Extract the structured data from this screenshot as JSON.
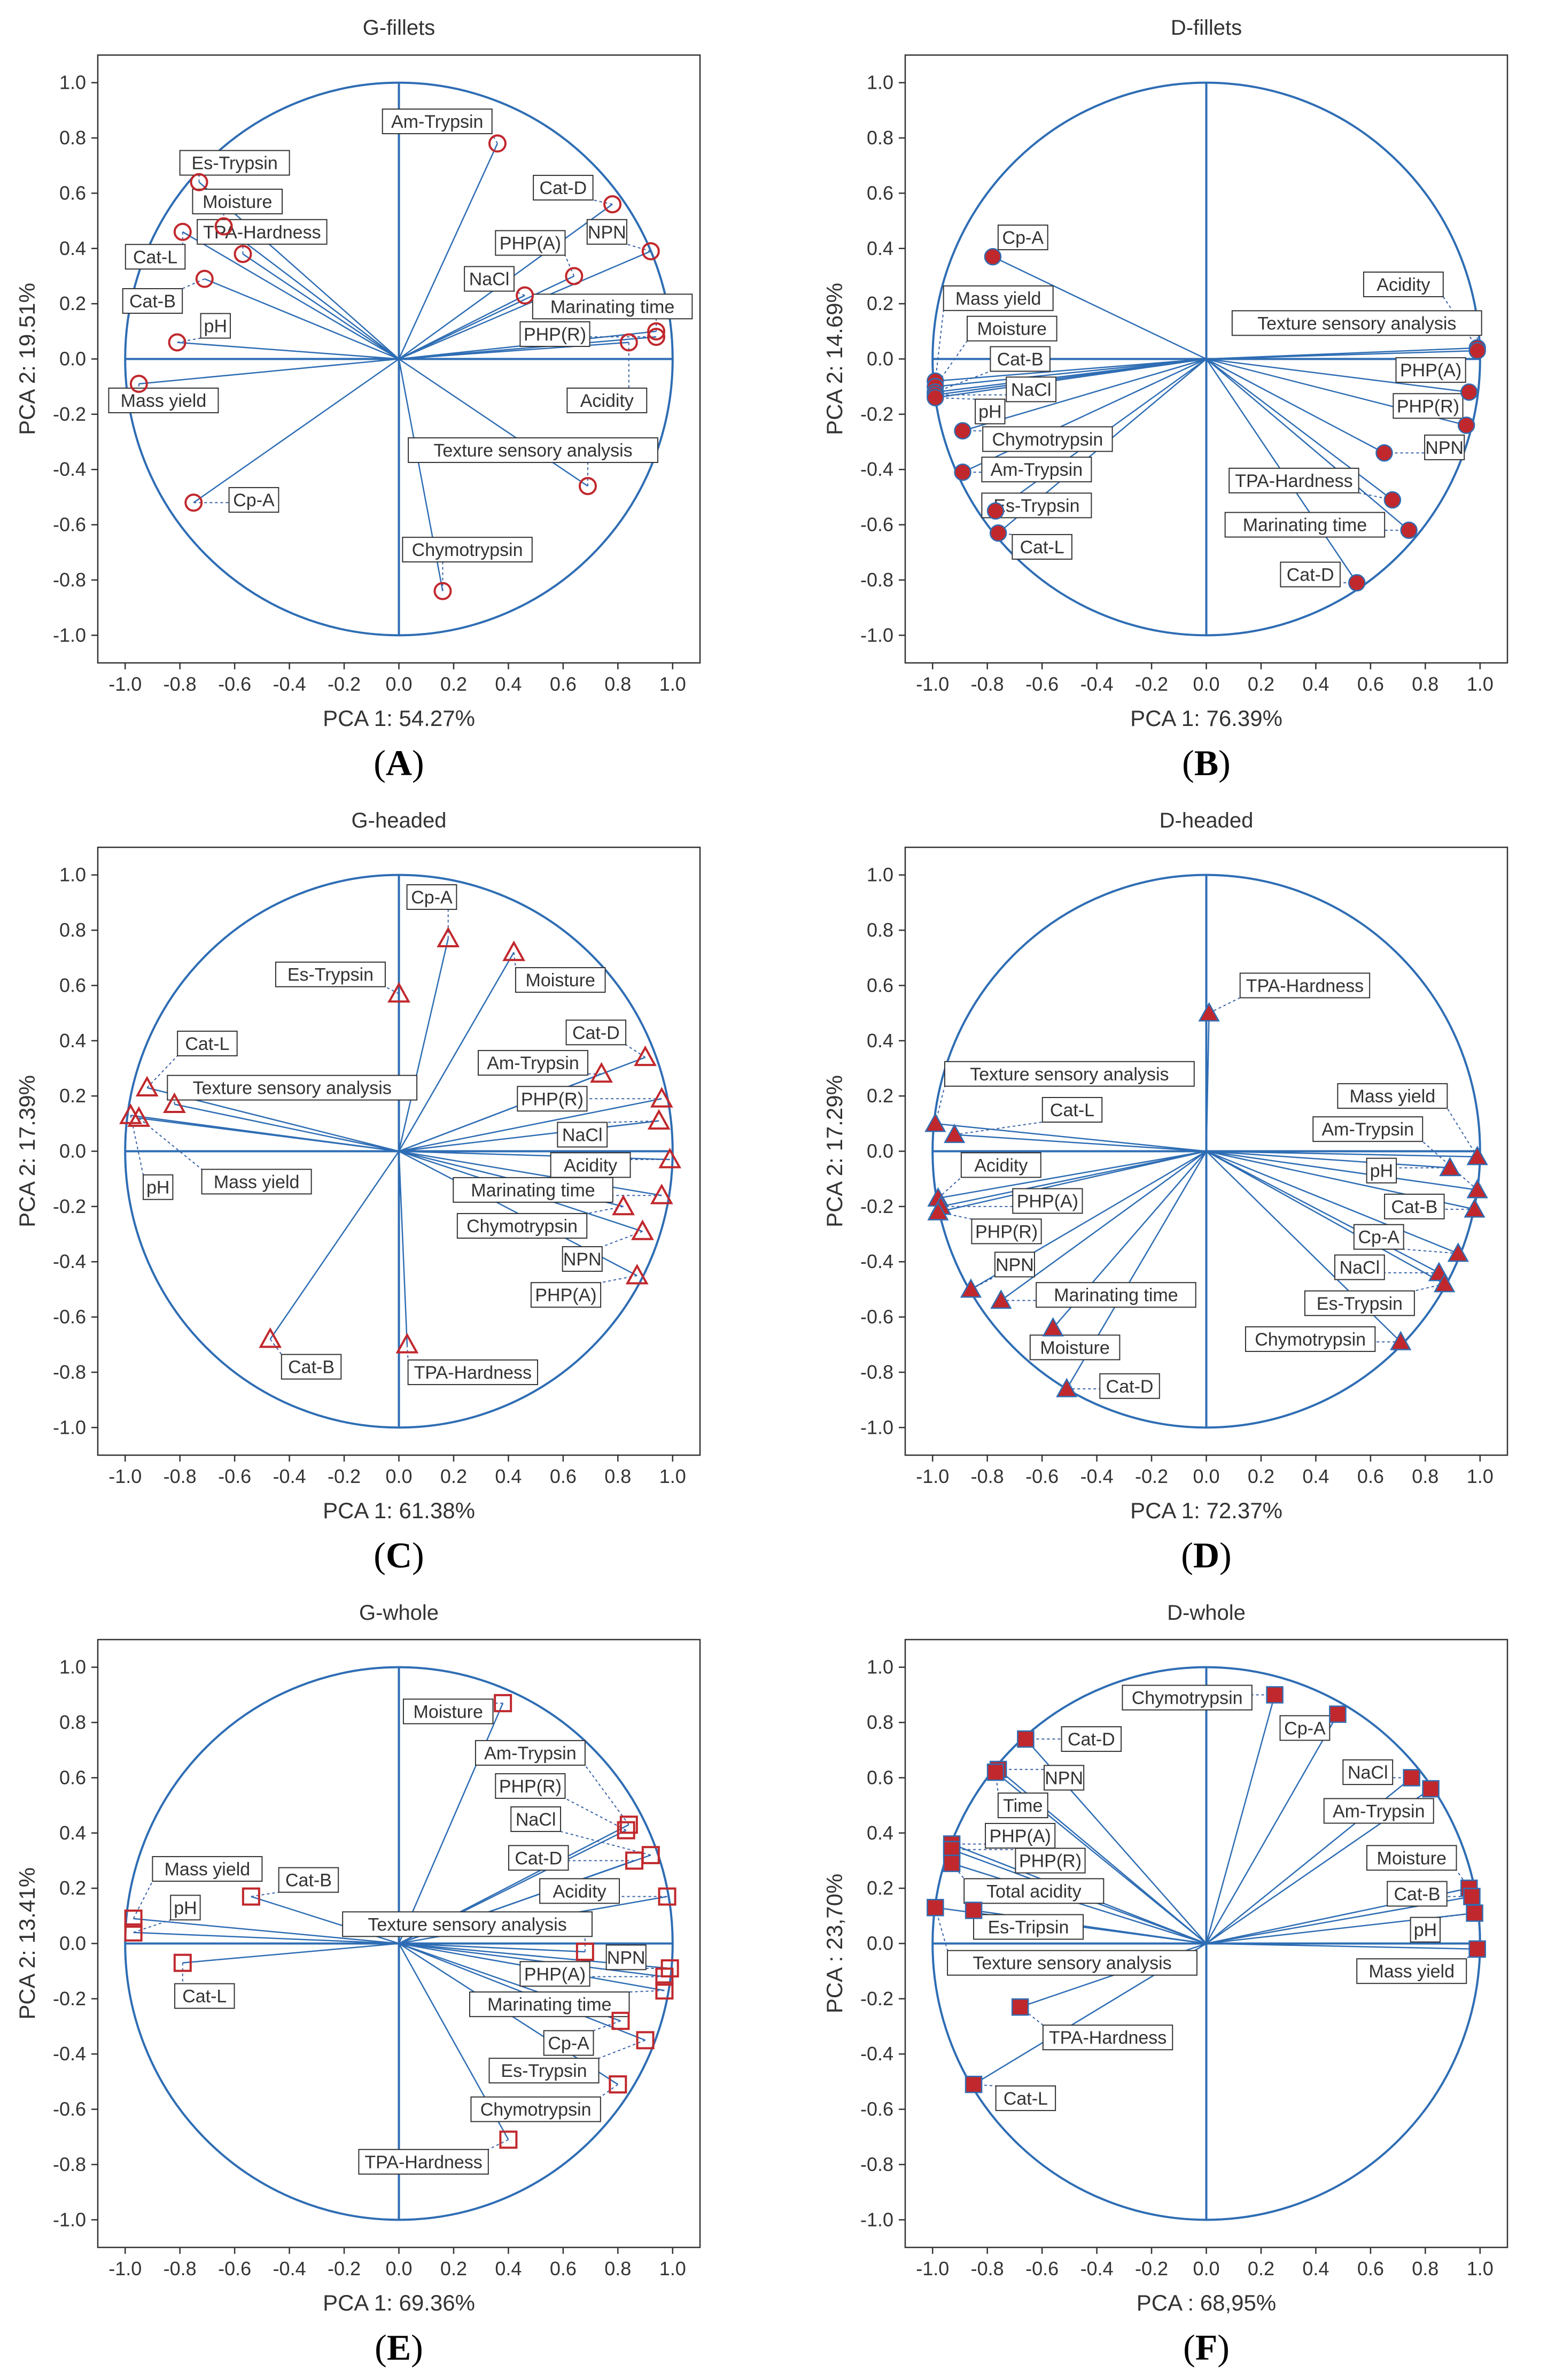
{
  "colors": {
    "axis_line": "#2e6db4",
    "marker": "#c0282d",
    "dashed": "#3a64a8",
    "label_border": "#333333",
    "text": "#333333"
  },
  "chart_data": [
    {
      "panel": "A",
      "letter": "A",
      "title": "G-fillets",
      "type": "scatter",
      "marker": "circle-open",
      "xlabel": "PCA 1: 54.27%",
      "ylabel": "PCA 2: 19.51%",
      "xlim": [
        -1.1,
        1.1
      ],
      "ylim": [
        -1.1,
        1.1
      ],
      "xticks": [
        "-1.0",
        "-0.8",
        "-0.6",
        "-0.4",
        "-0.2",
        "0.0",
        "0.2",
        "0.4",
        "0.6",
        "0.8",
        "1.0"
      ],
      "yticks": [
        "1.0",
        "0.8",
        "0.6",
        "0.4",
        "0.2",
        "0.0",
        "-0.2",
        "-0.4",
        "-0.6",
        "-0.8",
        "-1.0"
      ],
      "points": [
        {
          "label": "Am-Trypsin",
          "x": 0.36,
          "y": 0.78,
          "lx": 0.14,
          "ly": 0.86
        },
        {
          "label": "Cat-D",
          "x": 0.78,
          "y": 0.56,
          "lx": 0.6,
          "ly": 0.62
        },
        {
          "label": "NPN",
          "x": 0.92,
          "y": 0.39,
          "lx": 0.76,
          "ly": 0.46
        },
        {
          "label": "PHP(A)",
          "x": 0.64,
          "y": 0.3,
          "lx": 0.48,
          "ly": 0.42
        },
        {
          "label": "NaCl",
          "x": 0.46,
          "y": 0.23,
          "lx": 0.33,
          "ly": 0.29
        },
        {
          "label": "Marinating time",
          "x": 0.94,
          "y": 0.1,
          "lx": 0.78,
          "ly": 0.19
        },
        {
          "label": "PHP(R)",
          "x": 0.94,
          "y": 0.08,
          "lx": 0.57,
          "ly": 0.09
        },
        {
          "label": "Acidity",
          "x": 0.84,
          "y": 0.06,
          "lx": 0.76,
          "ly": -0.15
        },
        {
          "label": "Texture sensory analysis",
          "x": 0.69,
          "y": -0.46,
          "lx": 0.49,
          "ly": -0.33
        },
        {
          "label": "Chymotrypsin",
          "x": 0.16,
          "y": -0.84,
          "lx": 0.25,
          "ly": -0.69
        },
        {
          "label": "Es-Trypsin",
          "x": -0.73,
          "y": 0.64,
          "lx": -0.6,
          "ly": 0.71
        },
        {
          "label": "Moisture",
          "x": -0.64,
          "y": 0.48,
          "lx": -0.59,
          "ly": 0.57
        },
        {
          "label": "TPA-Hardness",
          "x": -0.57,
          "y": 0.38,
          "lx": -0.5,
          "ly": 0.46
        },
        {
          "label": "Cat-L",
          "x": -0.79,
          "y": 0.46,
          "lx": -0.89,
          "ly": 0.37
        },
        {
          "label": "Cat-B",
          "x": -0.71,
          "y": 0.29,
          "lx": -0.9,
          "ly": 0.21
        },
        {
          "label": "pH",
          "x": -0.81,
          "y": 0.06,
          "lx": -0.67,
          "ly": 0.12
        },
        {
          "label": "Mass yield",
          "x": -0.95,
          "y": -0.09,
          "lx": -0.86,
          "ly": -0.15
        },
        {
          "label": "Cp-A",
          "x": -0.75,
          "y": -0.52,
          "lx": -0.53,
          "ly": -0.51
        }
      ]
    },
    {
      "panel": "B",
      "letter": "B",
      "title": "D-fillets",
      "type": "scatter",
      "marker": "circle-filled",
      "xlabel": "PCA 1: 76.39%",
      "ylabel": "PCA 2: 14.69%",
      "xlim": [
        -1.1,
        1.1
      ],
      "ylim": [
        -1.1,
        1.1
      ],
      "xticks": [
        "-1.0",
        "-0.8",
        "-0.6",
        "-0.4",
        "-0.2",
        "0.0",
        "0.2",
        "0.4",
        "0.6",
        "0.8",
        "1.0"
      ],
      "yticks": [
        "1.0",
        "0.8",
        "0.6",
        "0.4",
        "0.2",
        "0.0",
        "-0.2",
        "-0.4",
        "-0.6",
        "-0.8",
        "-1.0"
      ],
      "points": [
        {
          "label": "Cp-A",
          "x": -0.78,
          "y": 0.37,
          "lx": -0.67,
          "ly": 0.44
        },
        {
          "label": "Mass yield",
          "x": -0.99,
          "y": -0.08,
          "lx": -0.76,
          "ly": 0.22
        },
        {
          "label": "Moisture",
          "x": -0.99,
          "y": -0.1,
          "lx": -0.71,
          "ly": 0.11
        },
        {
          "label": "Cat-B",
          "x": -0.99,
          "y": -0.12,
          "lx": -0.68,
          "ly": 0.0
        },
        {
          "label": "NaCl",
          "x": -0.99,
          "y": -0.13,
          "lx": -0.64,
          "ly": -0.11
        },
        {
          "label": "pH",
          "x": -0.99,
          "y": -0.14,
          "lx": -0.79,
          "ly": -0.19
        },
        {
          "label": "Chymotrypsin",
          "x": -0.89,
          "y": -0.26,
          "lx": -0.58,
          "ly": -0.29
        },
        {
          "label": "Am-Trypsin",
          "x": -0.89,
          "y": -0.41,
          "lx": -0.62,
          "ly": -0.4
        },
        {
          "label": "Es-Trypsin",
          "x": -0.77,
          "y": -0.55,
          "lx": -0.62,
          "ly": -0.53
        },
        {
          "label": "Cat-L",
          "x": -0.76,
          "y": -0.63,
          "lx": -0.6,
          "ly": -0.68
        },
        {
          "label": "Acidity",
          "x": 0.99,
          "y": 0.04,
          "lx": 0.72,
          "ly": 0.27
        },
        {
          "label": "Texture sensory analysis",
          "x": 0.99,
          "y": 0.03,
          "lx": 0.55,
          "ly": 0.13
        },
        {
          "label": "PHP(A)",
          "x": 0.96,
          "y": -0.12,
          "lx": 0.82,
          "ly": -0.04
        },
        {
          "label": "PHP(R)",
          "x": 0.95,
          "y": -0.24,
          "lx": 0.81,
          "ly": -0.17
        },
        {
          "label": "NPN",
          "x": 0.65,
          "y": -0.34,
          "lx": 0.87,
          "ly": -0.32
        },
        {
          "label": "TPA-Hardness",
          "x": 0.68,
          "y": -0.51,
          "lx": 0.32,
          "ly": -0.44
        },
        {
          "label": "Marinating time",
          "x": 0.74,
          "y": -0.62,
          "lx": 0.36,
          "ly": -0.6
        },
        {
          "label": "Cat-D",
          "x": 0.55,
          "y": -0.81,
          "lx": 0.38,
          "ly": -0.78
        }
      ]
    },
    {
      "panel": "C",
      "letter": "C",
      "title": "G-headed",
      "type": "scatter",
      "marker": "triangle-open",
      "xlabel": "PCA 1: 61.38%",
      "ylabel": "PCA 2: 17.39%",
      "xlim": [
        -1.1,
        1.1
      ],
      "ylim": [
        -1.1,
        1.1
      ],
      "xticks": [
        "-1.0",
        "-0.8",
        "-0.6",
        "-0.4",
        "-0.2",
        "0.0",
        "0.2",
        "0.4",
        "0.6",
        "0.8",
        "1.0"
      ],
      "yticks": [
        "1.0",
        "0.8",
        "0.6",
        "0.4",
        "0.2",
        "0.0",
        "-0.2",
        "-0.4",
        "-0.6",
        "-0.8",
        "-1.0"
      ],
      "points": [
        {
          "label": "Cp-A",
          "x": 0.18,
          "y": 0.77,
          "lx": 0.12,
          "ly": 0.92
        },
        {
          "label": "Es-Trypsin",
          "x": 0.0,
          "y": 0.57,
          "lx": -0.25,
          "ly": 0.64
        },
        {
          "label": "Moisture",
          "x": 0.42,
          "y": 0.72,
          "lx": 0.59,
          "ly": 0.62
        },
        {
          "label": "Cat-D",
          "x": 0.9,
          "y": 0.34,
          "lx": 0.72,
          "ly": 0.43
        },
        {
          "label": "Am-Trypsin",
          "x": 0.74,
          "y": 0.28,
          "lx": 0.49,
          "ly": 0.32
        },
        {
          "label": "PHP(R)",
          "x": 0.96,
          "y": 0.19,
          "lx": 0.56,
          "ly": 0.19
        },
        {
          "label": "NaCl",
          "x": 0.95,
          "y": 0.11,
          "lx": 0.67,
          "ly": 0.06
        },
        {
          "label": "Acidity",
          "x": 0.99,
          "y": -0.03,
          "lx": 0.7,
          "ly": -0.05
        },
        {
          "label": "Marinating time",
          "x": 0.96,
          "y": -0.16,
          "lx": 0.49,
          "ly": -0.14
        },
        {
          "label": "Chymotrypsin",
          "x": 0.82,
          "y": -0.2,
          "lx": 0.45,
          "ly": -0.27
        },
        {
          "label": "NPN",
          "x": 0.89,
          "y": -0.29,
          "lx": 0.67,
          "ly": -0.39
        },
        {
          "label": "PHP(A)",
          "x": 0.87,
          "y": -0.45,
          "lx": 0.61,
          "ly": -0.52
        },
        {
          "label": "TPA-Hardness",
          "x": 0.03,
          "y": -0.7,
          "lx": 0.27,
          "ly": -0.8
        },
        {
          "label": "Cat-B",
          "x": -0.47,
          "y": -0.68,
          "lx": -0.32,
          "ly": -0.78
        },
        {
          "label": "Cat-L",
          "x": -0.92,
          "y": 0.23,
          "lx": -0.7,
          "ly": 0.39
        },
        {
          "label": "Texture sensory analysis",
          "x": -0.82,
          "y": 0.17,
          "lx": -0.39,
          "ly": 0.23
        },
        {
          "label": "pH",
          "x": -0.98,
          "y": 0.13,
          "lx": -0.88,
          "ly": -0.13
        },
        {
          "label": "Mass yield",
          "x": -0.95,
          "y": 0.12,
          "lx": -0.52,
          "ly": -0.11
        }
      ]
    },
    {
      "panel": "D",
      "letter": "D",
      "title": "D-headed",
      "type": "scatter",
      "marker": "triangle-filled",
      "xlabel": "PCA 1: 72.37%",
      "ylabel": "PCA 2: 17.29%",
      "xlim": [
        -1.1,
        1.1
      ],
      "ylim": [
        -1.1,
        1.1
      ],
      "xticks": [
        "-1.0",
        "-0.8",
        "-0.6",
        "-0.4",
        "-0.2",
        "0.0",
        "0.2",
        "0.4",
        "0.6",
        "0.8",
        "1.0"
      ],
      "yticks": [
        "1.0",
        "0.8",
        "0.6",
        "0.4",
        "0.2",
        "0.0",
        "-0.2",
        "-0.4",
        "-0.6",
        "-0.8",
        "-1.0"
      ],
      "points": [
        {
          "label": "TPA-Hardness",
          "x": 0.01,
          "y": 0.5,
          "lx": 0.36,
          "ly": 0.6
        },
        {
          "label": "Texture sensory analysis",
          "x": -0.99,
          "y": 0.1,
          "lx": -0.5,
          "ly": 0.28
        },
        {
          "label": "Cat-L",
          "x": -0.92,
          "y": 0.06,
          "lx": -0.49,
          "ly": 0.15
        },
        {
          "label": "Mass yield",
          "x": 0.99,
          "y": -0.02,
          "lx": 0.68,
          "ly": 0.2
        },
        {
          "label": "Am-Trypsin",
          "x": 0.99,
          "y": -0.14,
          "lx": 0.59,
          "ly": 0.08
        },
        {
          "label": "pH",
          "x": 0.89,
          "y": -0.06,
          "lx": 0.64,
          "ly": -0.07
        },
        {
          "label": "Cat-B",
          "x": 0.98,
          "y": -0.21,
          "lx": 0.76,
          "ly": -0.2
        },
        {
          "label": "Cp-A",
          "x": 0.92,
          "y": -0.37,
          "lx": 0.63,
          "ly": -0.31
        },
        {
          "label": "NaCl",
          "x": 0.85,
          "y": -0.44,
          "lx": 0.56,
          "ly": -0.42
        },
        {
          "label": "Es-Trypsin",
          "x": 0.87,
          "y": -0.48,
          "lx": 0.56,
          "ly": -0.55
        },
        {
          "label": "Chymotrypsin",
          "x": 0.71,
          "y": -0.69,
          "lx": 0.38,
          "ly": -0.68
        },
        {
          "label": "Acidity",
          "x": -0.98,
          "y": -0.17,
          "lx": -0.75,
          "ly": -0.05
        },
        {
          "label": "PHP(A)",
          "x": -0.97,
          "y": -0.2,
          "lx": -0.58,
          "ly": -0.18
        },
        {
          "label": "PHP(R)",
          "x": -0.98,
          "y": -0.22,
          "lx": -0.73,
          "ly": -0.29
        },
        {
          "label": "NPN",
          "x": -0.86,
          "y": -0.5,
          "lx": -0.7,
          "ly": -0.41
        },
        {
          "label": "Marinating time",
          "x": -0.75,
          "y": -0.54,
          "lx": -0.33,
          "ly": -0.52
        },
        {
          "label": "Moisture",
          "x": -0.56,
          "y": -0.64,
          "lx": -0.48,
          "ly": -0.71
        },
        {
          "label": "Cat-D",
          "x": -0.51,
          "y": -0.86,
          "lx": -0.28,
          "ly": -0.85
        }
      ]
    },
    {
      "panel": "E",
      "letter": "E",
      "title": "G-whole",
      "type": "scatter",
      "marker": "square-open",
      "xlabel": "PCA 1: 69.36%",
      "ylabel": "PCA 2: 13.41%",
      "xlim": [
        -1.1,
        1.1
      ],
      "ylim": [
        -1.1,
        1.1
      ],
      "xticks": [
        "-1.0",
        "-0.8",
        "-0.6",
        "-0.4",
        "-0.2",
        "0.0",
        "0.2",
        "0.4",
        "0.6",
        "0.8",
        "1.0"
      ],
      "yticks": [
        "1.0",
        "0.8",
        "0.6",
        "0.4",
        "0.2",
        "0.0",
        "-0.2",
        "-0.4",
        "-0.6",
        "-0.8",
        "-1.0"
      ],
      "points": [
        {
          "label": "Moisture",
          "x": 0.38,
          "y": 0.87,
          "lx": 0.18,
          "ly": 0.84
        },
        {
          "label": "Am-Trypsin",
          "x": 0.84,
          "y": 0.43,
          "lx": 0.48,
          "ly": 0.69
        },
        {
          "label": "PHP(R)",
          "x": 0.83,
          "y": 0.41,
          "lx": 0.48,
          "ly": 0.57
        },
        {
          "label": "NaCl",
          "x": 0.92,
          "y": 0.32,
          "lx": 0.5,
          "ly": 0.45
        },
        {
          "label": "Cat-D",
          "x": 0.86,
          "y": 0.3,
          "lx": 0.51,
          "ly": 0.31
        },
        {
          "label": "Acidity",
          "x": 0.98,
          "y": 0.17,
          "lx": 0.66,
          "ly": 0.19
        },
        {
          "label": "Texture sensory analysis",
          "x": 0.68,
          "y": -0.03,
          "lx": 0.25,
          "ly": 0.07
        },
        {
          "label": "NPN",
          "x": 0.99,
          "y": -0.09,
          "lx": 0.83,
          "ly": -0.05
        },
        {
          "label": "PHP(A)",
          "x": 0.97,
          "y": -0.12,
          "lx": 0.57,
          "ly": -0.11
        },
        {
          "label": "Marinating time",
          "x": 0.97,
          "y": -0.17,
          "lx": 0.55,
          "ly": -0.22
        },
        {
          "label": "Cp-A",
          "x": 0.81,
          "y": -0.28,
          "lx": 0.62,
          "ly": -0.36
        },
        {
          "label": "Es-Trypsin",
          "x": 0.9,
          "y": -0.35,
          "lx": 0.53,
          "ly": -0.46
        },
        {
          "label": "Chymotrypsin",
          "x": 0.8,
          "y": -0.51,
          "lx": 0.5,
          "ly": -0.6
        },
        {
          "label": "TPA-Hardness",
          "x": 0.4,
          "y": -0.71,
          "lx": 0.09,
          "ly": -0.79
        },
        {
          "label": "Mass yield",
          "x": -0.97,
          "y": 0.09,
          "lx": -0.7,
          "ly": 0.27
        },
        {
          "label": "Cat-B",
          "x": -0.54,
          "y": 0.17,
          "lx": -0.33,
          "ly": 0.23
        },
        {
          "label": "pH",
          "x": -0.97,
          "y": 0.04,
          "lx": -0.78,
          "ly": 0.13
        },
        {
          "label": "Cat-L",
          "x": -0.79,
          "y": -0.07,
          "lx": -0.71,
          "ly": -0.19
        }
      ]
    },
    {
      "panel": "F",
      "letter": "F",
      "title": "D-whole",
      "type": "scatter",
      "marker": "square-filled",
      "xlabel": "PCA : 68,95%",
      "ylabel": "PCA : 23,70%",
      "xlim": [
        -1.1,
        1.1
      ],
      "ylim": [
        -1.1,
        1.1
      ],
      "xticks": [
        "-1.0",
        "-0.8",
        "-0.6",
        "-0.4",
        "-0.2",
        "0.0",
        "0.2",
        "0.4",
        "0.6",
        "0.8",
        "1.0"
      ],
      "yticks": [
        "1.0",
        "0.8",
        "0.6",
        "0.4",
        "0.2",
        "0.0",
        "-0.2",
        "-0.4",
        "-0.6",
        "-0.8",
        "-1.0"
      ],
      "points": [
        {
          "label": "Chymotrypsin",
          "x": 0.25,
          "y": 0.9,
          "lx": -0.07,
          "ly": 0.89
        },
        {
          "label": "Cp-A",
          "x": 0.48,
          "y": 0.83,
          "lx": 0.36,
          "ly": 0.78
        },
        {
          "label": "NaCl",
          "x": 0.75,
          "y": 0.6,
          "lx": 0.59,
          "ly": 0.62
        },
        {
          "label": "Am-Trypsin",
          "x": 0.82,
          "y": 0.56,
          "lx": 0.63,
          "ly": 0.48
        },
        {
          "label": "Moisture",
          "x": 0.96,
          "y": 0.2,
          "lx": 0.75,
          "ly": 0.31
        },
        {
          "label": "Cat-B",
          "x": 0.97,
          "y": 0.17,
          "lx": 0.77,
          "ly": 0.18
        },
        {
          "label": "pH",
          "x": 0.98,
          "y": 0.11,
          "lx": 0.8,
          "ly": 0.05
        },
        {
          "label": "Mass yield",
          "x": 0.99,
          "y": -0.02,
          "lx": 0.75,
          "ly": -0.1
        },
        {
          "label": "Cat-D",
          "x": -0.66,
          "y": 0.74,
          "lx": -0.42,
          "ly": 0.74
        },
        {
          "label": "NPN",
          "x": -0.76,
          "y": 0.63,
          "lx": -0.52,
          "ly": 0.6
        },
        {
          "label": "Time",
          "x": -0.77,
          "y": 0.62,
          "lx": -0.67,
          "ly": 0.5
        },
        {
          "label": "PHP(A)",
          "x": -0.93,
          "y": 0.36,
          "lx": -0.68,
          "ly": 0.39
        },
        {
          "label": "PHP(R)",
          "x": -0.93,
          "y": 0.34,
          "lx": -0.57,
          "ly": 0.3
        },
        {
          "label": "Total acidity",
          "x": -0.93,
          "y": 0.29,
          "lx": -0.63,
          "ly": 0.19
        },
        {
          "label": "Es-Tripsin",
          "x": -0.85,
          "y": 0.12,
          "lx": -0.65,
          "ly": 0.06
        },
        {
          "label": "Texture sensory analysis",
          "x": -0.99,
          "y": 0.13,
          "lx": -0.49,
          "ly": -0.07
        },
        {
          "label": "TPA-Hardness",
          "x": -0.68,
          "y": -0.23,
          "lx": -0.36,
          "ly": -0.34
        },
        {
          "label": "Cat-L",
          "x": -0.85,
          "y": -0.51,
          "lx": -0.66,
          "ly": -0.56
        }
      ]
    }
  ]
}
